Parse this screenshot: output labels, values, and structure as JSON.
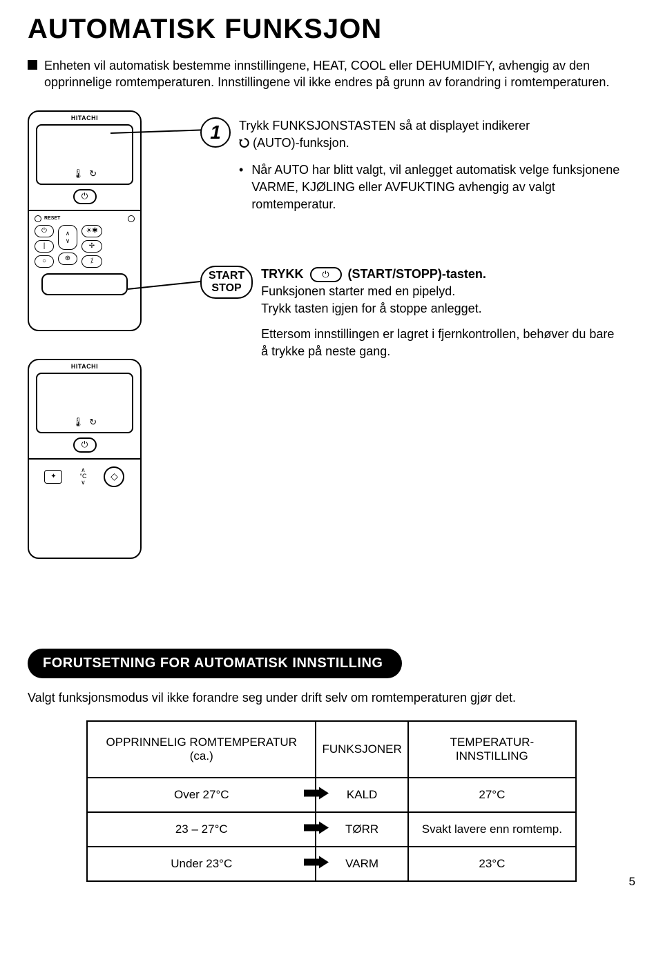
{
  "title": "AUTOMATISK FUNKSJON",
  "intro": "Enheten vil automatisk bestemme innstillingene, HEAT, COOL eller DEHUMIDIFY, avhengig av den opprinnelige romtemperaturen. Innstillingene vil ikke endres på grunn av forandring i romtemperaturen.",
  "remote": {
    "brand": "HITACHI",
    "reset_label": "RESET"
  },
  "step1": {
    "number": "1",
    "text_a": "Trykk FUNKSJONSTASTEN så at displayet indikerer",
    "text_b": "(AUTO)-funksjon.",
    "bullet": "Når AUTO har blitt valgt, vil anlegget automatisk velge funksjonene VARME, KJØLING eller AVFUKTING avhengig av valgt romtemperatur."
  },
  "step2": {
    "label_line1": "START",
    "label_line2": "STOP",
    "trykk": "TRYKK",
    "tasten": "(START/STOPP)-tasten.",
    "line2": "Funksjonen starter med en pipelyd.",
    "line3": "Trykk tasten igjen for å stoppe anlegget.",
    "para2": "Ettersom innstillingen er lagret i fjernkontrollen, behøver du bare å trykke på neste gang."
  },
  "subsection": {
    "header": "FORUTSETNING FOR AUTOMATISK INNSTILLING",
    "text": "Valgt funksjonsmodus vil ikke forandre seg under drift selv om romtemperaturen gjør det."
  },
  "table": {
    "headers": [
      "OPPRINNELIG ROMTEMPERATUR (ca.)",
      "FUNKSJONER",
      "TEMPERATUR-INNSTILLING"
    ],
    "rows": [
      {
        "temp": "Over 27°C",
        "func": "KALD",
        "setting": "27°C"
      },
      {
        "temp": "23 – 27°C",
        "func": "TØRR",
        "setting": "Svakt lavere enn romtemp."
      },
      {
        "temp": "Under 23°C",
        "func": "VARM",
        "setting": "23°C"
      }
    ],
    "arrow_color": "#000000"
  },
  "page_number": "5"
}
